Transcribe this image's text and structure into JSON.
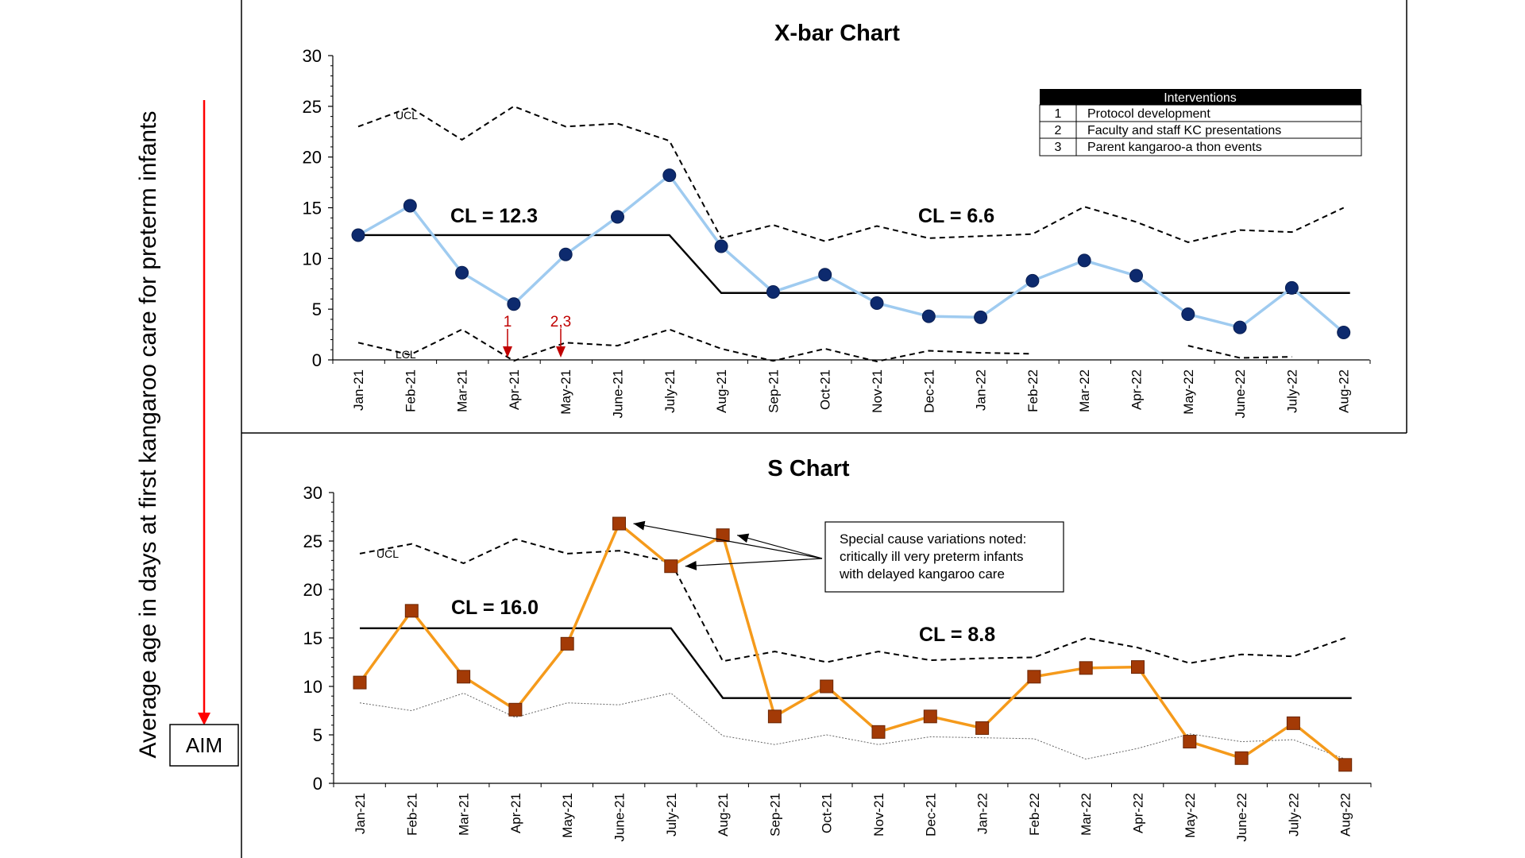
{
  "y_axis_label": "Average age in days at first kangaroo care for preterm infants",
  "aim_label": "AIM",
  "months": [
    "Jan-21",
    "Feb-21",
    "Mar-21",
    "Apr-21",
    "May-21",
    "June-21",
    "July-21",
    "Aug-21",
    "Sep-21",
    "Oct-21",
    "Nov-21",
    "Dec-21",
    "Jan-22",
    "Feb-22",
    "Mar-22",
    "Apr-22",
    "May-22",
    "June-22",
    "July-22",
    "Aug-22"
  ],
  "interventions": {
    "header": "Interventions",
    "rows": [
      {
        "num": "1",
        "text": "Protocol development"
      },
      {
        "num": "2",
        "text": "Faculty and staff KC presentations"
      },
      {
        "num": "3",
        "text": "Parent kangaroo-a thon events"
      }
    ]
  },
  "intervention_markers": [
    {
      "label": "1",
      "x": "Apr-21"
    },
    {
      "label": "2,3",
      "x": "May-21"
    }
  ],
  "callout": {
    "lines": [
      "Special cause variations noted:",
      "critically ill very preterm infants",
      "with delayed kangaroo care"
    ]
  },
  "colors": {
    "xbar_line": "#9fcbf0",
    "xbar_marker": "#0d2a6e",
    "s_line": "#f59a1b",
    "s_marker": "#a33a06",
    "aim_arrow": "#ff0000",
    "marker_arrow": "#c00000",
    "control_limits": "#000000"
  },
  "chart_data": [
    {
      "type": "line",
      "title": "X-bar Chart",
      "ylim": [
        0,
        30
      ],
      "yticks": [
        0,
        5,
        10,
        15,
        20,
        25,
        30
      ],
      "ucl_label": "UCL",
      "lcl_label": "LCL",
      "cl_labels": [
        "CL = 12.3",
        "CL = 6.6"
      ],
      "center_lines": [
        {
          "value": 12.3,
          "from": "Jan-21",
          "to": "July-21"
        },
        {
          "value": 6.6,
          "from": "Aug-21",
          "to": "Aug-22"
        }
      ],
      "series": [
        {
          "values": [
            12.3,
            15.2,
            8.6,
            5.5,
            10.4,
            14.1,
            18.2,
            11.2,
            6.7,
            8.4,
            5.6,
            4.3,
            4.2,
            7.8,
            9.8,
            8.3,
            4.5,
            3.2,
            7.1,
            2.7
          ]
        }
      ],
      "ucl": [
        23.0,
        24.9,
        21.7,
        25.0,
        23.0,
        23.3,
        21.6,
        12.0,
        13.3,
        11.7,
        13.2,
        12.0,
        12.2,
        12.4,
        15.1,
        13.6,
        11.6,
        12.8,
        12.6,
        15.0
      ],
      "lcl": [
        1.7,
        0.5,
        3.0,
        -0.1,
        1.7,
        1.4,
        3.0,
        1.1,
        -0.1,
        1.1,
        -0.2,
        0.9,
        0.7,
        0.6,
        null,
        null,
        1.4,
        0.2,
        0.3,
        null
      ]
    },
    {
      "type": "line",
      "title": "S Chart",
      "ylim": [
        0,
        30
      ],
      "yticks": [
        0,
        5,
        10,
        15,
        20,
        25,
        30
      ],
      "ucl_label": "UCL",
      "cl_labels": [
        "CL = 16.0",
        "CL = 8.8"
      ],
      "center_lines": [
        {
          "value": 16.0,
          "from": "Jan-21",
          "to": "July-21"
        },
        {
          "value": 8.8,
          "from": "Aug-21",
          "to": "Aug-22"
        }
      ],
      "series": [
        {
          "values": [
            10.4,
            17.8,
            11.0,
            7.6,
            14.4,
            26.8,
            22.4,
            25.6,
            6.9,
            10.0,
            5.3,
            6.9,
            5.7,
            11.0,
            11.9,
            12.0,
            4.3,
            2.6,
            6.2,
            1.9
          ]
        }
      ],
      "ucl": [
        23.7,
        24.7,
        22.7,
        25.2,
        23.7,
        24.0,
        22.8,
        12.6,
        13.6,
        12.5,
        13.6,
        12.7,
        12.9,
        13.0,
        15.0,
        14.0,
        12.4,
        13.3,
        13.1,
        15.0
      ],
      "lcl": [
        8.3,
        7.5,
        9.3,
        6.8,
        8.3,
        8.1,
        9.3,
        4.9,
        4.0,
        5.0,
        4.0,
        4.8,
        4.7,
        4.6,
        2.5,
        3.6,
        5.1,
        4.3,
        4.5,
        2.5
      ]
    }
  ]
}
